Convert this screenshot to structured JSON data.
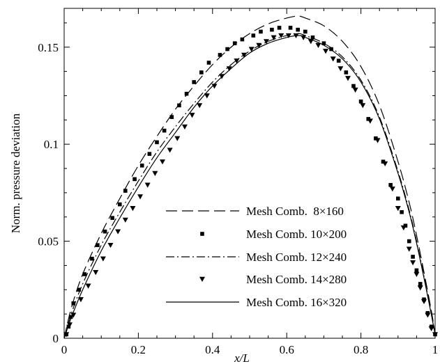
{
  "chart_data": {
    "type": "line",
    "title": "",
    "xlabel": "x/L",
    "ylabel": "Norm. pressure deviation",
    "xlim": [
      0,
      1
    ],
    "ylim": [
      0,
      0.17
    ],
    "x_ticks": [
      0,
      0.2,
      0.4,
      0.6,
      0.8,
      1
    ],
    "x_tick_labels": [
      "0",
      "0.2",
      "0.4",
      "0.6",
      "0.8",
      "1"
    ],
    "y_ticks": [
      0,
      0.05,
      0.1,
      0.15
    ],
    "y_tick_labels": [
      "0",
      "0.05",
      "0.1",
      "0.15"
    ],
    "grid": false,
    "legend_position": "lower-center",
    "series": [
      {
        "name": "Mesh Comb.  8×160",
        "style": "dashed",
        "x": [
          0,
          0.02,
          0.05,
          0.1,
          0.15,
          0.2,
          0.25,
          0.3,
          0.35,
          0.4,
          0.45,
          0.5,
          0.55,
          0.6,
          0.63,
          0.65,
          0.7,
          0.75,
          0.8,
          0.85,
          0.9,
          0.93,
          0.95,
          0.97,
          0.99,
          1.0
        ],
        "y": [
          0,
          0.016,
          0.033,
          0.054,
          0.072,
          0.089,
          0.104,
          0.118,
          0.13,
          0.141,
          0.15,
          0.157,
          0.162,
          0.165,
          0.166,
          0.165,
          0.161,
          0.153,
          0.14,
          0.12,
          0.091,
          0.07,
          0.053,
          0.034,
          0.014,
          0.002
        ]
      },
      {
        "name": "Mesh Comb. 10×200",
        "style": "square-markers",
        "x": [
          0.006,
          0.012,
          0.018,
          0.025,
          0.04,
          0.055,
          0.075,
          0.09,
          0.11,
          0.13,
          0.15,
          0.165,
          0.19,
          0.21,
          0.23,
          0.25,
          0.27,
          0.29,
          0.31,
          0.33,
          0.35,
          0.37,
          0.39,
          0.42,
          0.44,
          0.46,
          0.48,
          0.51,
          0.53,
          0.56,
          0.58,
          0.61,
          0.63,
          0.65,
          0.67,
          0.7,
          0.72,
          0.74,
          0.76,
          0.78,
          0.8,
          0.82,
          0.84,
          0.86,
          0.88,
          0.9,
          0.91,
          0.92,
          0.93,
          0.94,
          0.95,
          0.96,
          0.97,
          0.98,
          0.99,
          1.0
        ],
        "y": [
          0.002,
          0.006,
          0.011,
          0.018,
          0.025,
          0.033,
          0.041,
          0.048,
          0.055,
          0.062,
          0.069,
          0.076,
          0.082,
          0.089,
          0.095,
          0.101,
          0.107,
          0.114,
          0.12,
          0.126,
          0.132,
          0.137,
          0.142,
          0.146,
          0.149,
          0.152,
          0.154,
          0.156,
          0.158,
          0.159,
          0.16,
          0.16,
          0.159,
          0.158,
          0.155,
          0.152,
          0.149,
          0.143,
          0.137,
          0.13,
          0.122,
          0.113,
          0.103,
          0.091,
          0.079,
          0.072,
          0.065,
          0.058,
          0.05,
          0.042,
          0.035,
          0.028,
          0.02,
          0.013,
          0.006,
          0.002
        ]
      },
      {
        "name": "Mesh Comb. 12×240",
        "style": "dash-dot",
        "x": [
          0,
          0.02,
          0.05,
          0.1,
          0.15,
          0.2,
          0.25,
          0.3,
          0.35,
          0.4,
          0.45,
          0.5,
          0.55,
          0.6,
          0.63,
          0.65,
          0.7,
          0.75,
          0.8,
          0.85,
          0.9,
          0.93,
          0.95,
          0.97,
          0.99,
          1.0
        ],
        "y": [
          0,
          0.013,
          0.028,
          0.048,
          0.065,
          0.081,
          0.096,
          0.109,
          0.121,
          0.132,
          0.141,
          0.148,
          0.153,
          0.156,
          0.157,
          0.156,
          0.152,
          0.145,
          0.133,
          0.114,
          0.086,
          0.066,
          0.05,
          0.032,
          0.013,
          0.002
        ]
      },
      {
        "name": "Mesh Comb. 14×280",
        "style": "triangle-markers",
        "x": [
          0.006,
          0.015,
          0.025,
          0.045,
          0.065,
          0.085,
          0.105,
          0.125,
          0.145,
          0.165,
          0.185,
          0.205,
          0.225,
          0.245,
          0.265,
          0.285,
          0.305,
          0.325,
          0.345,
          0.365,
          0.385,
          0.405,
          0.425,
          0.445,
          0.465,
          0.485,
          0.505,
          0.525,
          0.545,
          0.565,
          0.585,
          0.605,
          0.625,
          0.645,
          0.665,
          0.685,
          0.705,
          0.725,
          0.745,
          0.765,
          0.785,
          0.805,
          0.825,
          0.845,
          0.865,
          0.885,
          0.9,
          0.915,
          0.93,
          0.94,
          0.95,
          0.96,
          0.97,
          0.98,
          0.99,
          1.0
        ],
        "y": [
          0.002,
          0.007,
          0.012,
          0.02,
          0.027,
          0.034,
          0.041,
          0.048,
          0.055,
          0.061,
          0.067,
          0.073,
          0.079,
          0.085,
          0.091,
          0.097,
          0.103,
          0.109,
          0.115,
          0.12,
          0.125,
          0.13,
          0.135,
          0.139,
          0.143,
          0.146,
          0.149,
          0.151,
          0.153,
          0.155,
          0.156,
          0.156,
          0.156,
          0.155,
          0.153,
          0.151,
          0.148,
          0.144,
          0.139,
          0.134,
          0.128,
          0.12,
          0.112,
          0.102,
          0.09,
          0.077,
          0.067,
          0.057,
          0.046,
          0.039,
          0.033,
          0.026,
          0.019,
          0.012,
          0.005,
          0.002
        ]
      },
      {
        "name": "Mesh Comb. 16×320",
        "style": "solid",
        "x": [
          0,
          0.02,
          0.05,
          0.1,
          0.15,
          0.2,
          0.25,
          0.3,
          0.35,
          0.4,
          0.45,
          0.5,
          0.55,
          0.6,
          0.63,
          0.65,
          0.7,
          0.75,
          0.8,
          0.85,
          0.9,
          0.93,
          0.95,
          0.97,
          0.99,
          1.0
        ],
        "y": [
          0,
          0.011,
          0.025,
          0.045,
          0.062,
          0.078,
          0.093,
          0.106,
          0.119,
          0.13,
          0.139,
          0.147,
          0.152,
          0.155,
          0.156,
          0.155,
          0.151,
          0.144,
          0.132,
          0.113,
          0.085,
          0.065,
          0.049,
          0.031,
          0.012,
          0.002
        ]
      }
    ]
  }
}
